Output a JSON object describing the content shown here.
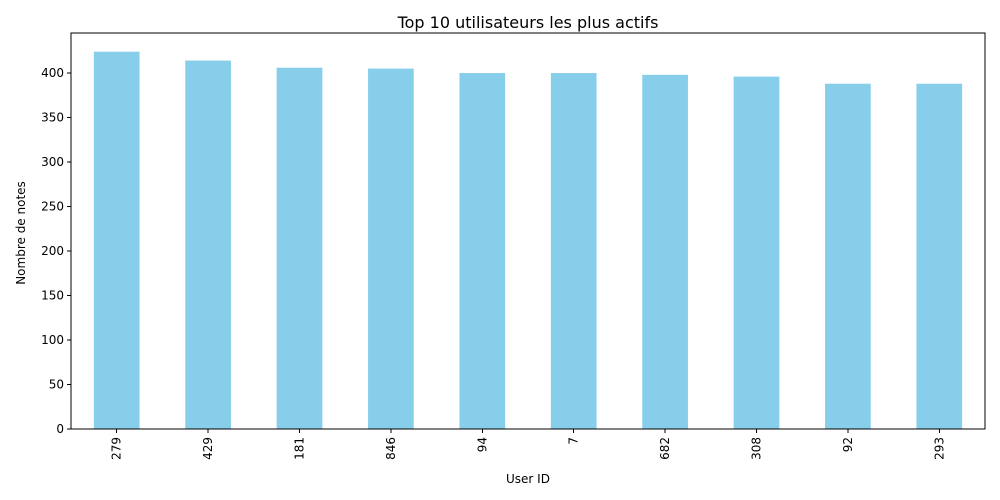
{
  "chart_data": {
    "type": "bar",
    "title": "Top 10 utilisateurs les plus actifs",
    "xlabel": "User ID",
    "ylabel": "Nombre de notes",
    "categories": [
      "279",
      "429",
      "181",
      "846",
      "94",
      "7",
      "682",
      "308",
      "92",
      "293"
    ],
    "values": [
      424,
      414,
      406,
      405,
      400,
      400,
      398,
      396,
      388,
      388
    ],
    "yticks": [
      0,
      50,
      100,
      150,
      200,
      250,
      300,
      350,
      400
    ],
    "ylim": [
      0,
      445
    ],
    "grid": false,
    "legend": "none",
    "bar_color": "#87CEEB"
  }
}
